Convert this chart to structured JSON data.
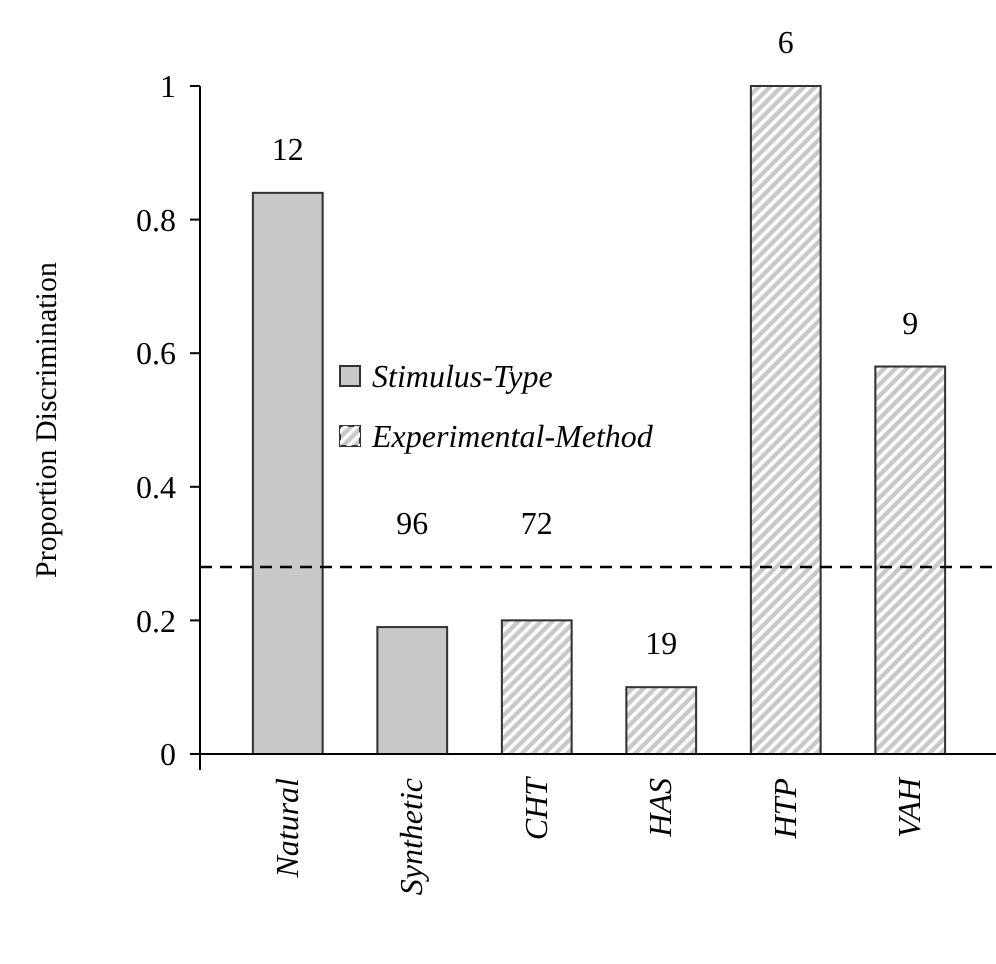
{
  "chart_data": {
    "type": "bar",
    "ylabel": "Proportion Discrimination",
    "categories": [
      "Natural",
      "Synthetic",
      "CHT",
      "HAS",
      "HTP",
      "VAH"
    ],
    "series": [
      {
        "name": "Stimulus-Type",
        "color": "#c8c8c8",
        "values": [
          0.84,
          0.19,
          null,
          null,
          null,
          null
        ]
      },
      {
        "name": "Experimental-Method",
        "color": "#c8c8c8",
        "values": [
          null,
          null,
          0.2,
          0.1,
          1.0,
          0.58
        ]
      }
    ],
    "ylim": [
      0,
      1
    ],
    "yticks": [
      0,
      0.2,
      0.4,
      0.6,
      0.8,
      1
    ],
    "ref_lines": [
      {
        "axis": "y",
        "value": 0.28,
        "line_style": "dashed",
        "color": "#000000"
      }
    ],
    "annotations": [
      "12",
      "96",
      "72",
      "19",
      "6",
      "9"
    ],
    "legend": "left"
  }
}
